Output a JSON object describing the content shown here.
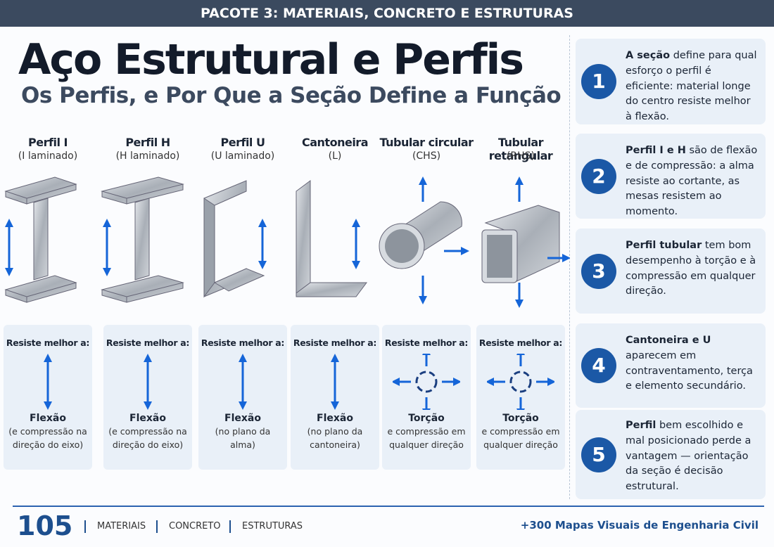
{
  "header": {
    "banner": "PACOTE 3: MATERIAIS, CONCRETO E ESTRUTURAS"
  },
  "title": "Aço Estrutural e Perfis",
  "subtitle": "Os Perfis, e Por Que a Seção Define a Função",
  "profiles": [
    {
      "name": "Perfil I",
      "detail": "(I laminado)",
      "resist_label": "Resiste melhor a:",
      "effect": "Flexão",
      "effect_note": "(e compressão na direção do eixo)"
    },
    {
      "name": "Perfil H",
      "detail": "(H laminado)",
      "resist_label": "Resiste melhor a:",
      "effect": "Flexão",
      "effect_note": "(e compressão na direção do eixo)"
    },
    {
      "name": "Perfil U",
      "detail": "(U laminado)",
      "resist_label": "Resiste melhor a:",
      "effect": "Flexão",
      "effect_note": "(no plano da alma)"
    },
    {
      "name": "Cantoneira",
      "detail": "(L)",
      "resist_label": "Resiste melhor a:",
      "effect": "Flexão",
      "effect_note": "(no plano da cantoneira)"
    },
    {
      "name": "Tubular circular",
      "detail": "(CHS)",
      "resist_label": "Resiste melhor a:",
      "effect": "Torção",
      "effect_note": "e compressão em qualquer direção"
    },
    {
      "name": "Tubular retangular",
      "detail": "(RHS)",
      "resist_label": "Resiste melhor a:",
      "effect": "Torção",
      "effect_note": "e compressão em qualquer direção"
    }
  ],
  "notes": [
    {
      "number": "1",
      "bold": "A seção",
      "text": "define para qual esforço o perfil é eficiente: material longe do centro resiste melhor à flexão."
    },
    {
      "number": "2",
      "bold": "Perfil I e H",
      "text": "são de flexão e de compressão: a alma resiste ao cortante, as mesas resistem ao momento."
    },
    {
      "number": "3",
      "bold": "Perfil tubular",
      "text": "tem bom desempenho à torção e à compressão em qualquer direção."
    },
    {
      "number": "4",
      "bold": "Cantoneira e U",
      "text": "aparecem em contraventamento, terça e elemento secundário."
    },
    {
      "number": "5",
      "bold": "Perfil",
      "text": "bem escolhido e mal posicionado perde a vantagem — orientação da seção é decisão estrutural."
    }
  ],
  "footer": {
    "page": "105",
    "items": [
      "MATERIAIS",
      "CONCRETO",
      "ESTRUTURAS"
    ],
    "tagline": "+300 Mapas Visuais de Engenharia Civil"
  }
}
